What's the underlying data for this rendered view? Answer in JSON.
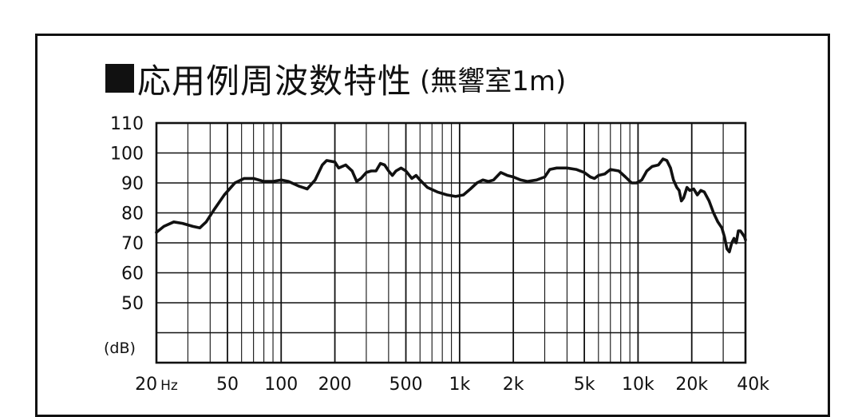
{
  "title": {
    "main": "応用例周波数特性",
    "sub": "(無響室1m)"
  },
  "chart_data": {
    "type": "line",
    "title": "応用例周波数特性 (無響室1m)",
    "xlabel": "",
    "ylabel": "(dB)",
    "xscale": "log",
    "xlim": [
      20,
      40000
    ],
    "ylim": [
      30,
      110
    ],
    "grid": true,
    "x_ticks": [
      {
        "value": 20,
        "label": "20",
        "unit": "Hz"
      },
      {
        "value": 50,
        "label": "50"
      },
      {
        "value": 100,
        "label": "100"
      },
      {
        "value": 200,
        "label": "200"
      },
      {
        "value": 500,
        "label": "500"
      },
      {
        "value": 1000,
        "label": "1k"
      },
      {
        "value": 2000,
        "label": "2k"
      },
      {
        "value": 5000,
        "label": "5k"
      },
      {
        "value": 10000,
        "label": "10k"
      },
      {
        "value": 20000,
        "label": "20k"
      },
      {
        "value": 40000,
        "label": "40k"
      }
    ],
    "y_ticks": [
      {
        "value": 110,
        "label": "110"
      },
      {
        "value": 100,
        "label": "100"
      },
      {
        "value": 90,
        "label": "90"
      },
      {
        "value": 80,
        "label": "80"
      },
      {
        "value": 70,
        "label": "70"
      },
      {
        "value": 60,
        "label": "60"
      },
      {
        "value": 50,
        "label": "50"
      }
    ],
    "series": [
      {
        "color": "#111111",
        "points": [
          [
            20,
            73.5
          ],
          [
            22,
            75.5
          ],
          [
            25,
            77
          ],
          [
            28,
            76.5
          ],
          [
            32,
            75.5
          ],
          [
            35,
            75
          ],
          [
            38,
            77
          ],
          [
            42,
            81
          ],
          [
            48,
            86
          ],
          [
            55,
            90
          ],
          [
            62,
            91.5
          ],
          [
            70,
            91.5
          ],
          [
            80,
            90.5
          ],
          [
            90,
            90.5
          ],
          [
            100,
            91
          ],
          [
            110,
            90.5
          ],
          [
            125,
            89
          ],
          [
            140,
            88
          ],
          [
            155,
            91
          ],
          [
            170,
            96
          ],
          [
            180,
            97.5
          ],
          [
            200,
            97
          ],
          [
            210,
            95
          ],
          [
            230,
            96
          ],
          [
            250,
            94
          ],
          [
            265,
            90.5
          ],
          [
            280,
            91.5
          ],
          [
            300,
            93.5
          ],
          [
            320,
            94
          ],
          [
            340,
            94
          ],
          [
            360,
            96.5
          ],
          [
            380,
            96
          ],
          [
            400,
            94
          ],
          [
            420,
            92.5
          ],
          [
            440,
            94
          ],
          [
            470,
            95
          ],
          [
            500,
            94
          ],
          [
            540,
            91.5
          ],
          [
            570,
            92.5
          ],
          [
            600,
            91
          ],
          [
            660,
            88.5
          ],
          [
            750,
            87
          ],
          [
            850,
            86
          ],
          [
            950,
            85.5
          ],
          [
            1050,
            86
          ],
          [
            1150,
            88
          ],
          [
            1250,
            90
          ],
          [
            1350,
            91
          ],
          [
            1450,
            90.5
          ],
          [
            1550,
            91
          ],
          [
            1700,
            93.5
          ],
          [
            1850,
            92.5
          ],
          [
            2000,
            92
          ],
          [
            2200,
            91
          ],
          [
            2400,
            90.5
          ],
          [
            2700,
            91
          ],
          [
            3000,
            92
          ],
          [
            3200,
            94.5
          ],
          [
            3500,
            95
          ],
          [
            4000,
            95
          ],
          [
            4500,
            94.5
          ],
          [
            5000,
            93.5
          ],
          [
            5400,
            92
          ],
          [
            5700,
            91.5
          ],
          [
            6000,
            92.5
          ],
          [
            6500,
            93
          ],
          [
            7000,
            94.5
          ],
          [
            7800,
            94
          ],
          [
            8500,
            92
          ],
          [
            9200,
            90
          ],
          [
            9800,
            90
          ],
          [
            10500,
            91
          ],
          [
            11200,
            94
          ],
          [
            12000,
            95.5
          ],
          [
            13000,
            96
          ],
          [
            13800,
            98
          ],
          [
            14500,
            97.5
          ],
          [
            15200,
            95
          ],
          [
            15800,
            91
          ],
          [
            16500,
            88.5
          ],
          [
            17000,
            87.5
          ],
          [
            17500,
            84
          ],
          [
            18000,
            85
          ],
          [
            18800,
            88.5
          ],
          [
            19500,
            87.5
          ],
          [
            20500,
            88
          ],
          [
            21500,
            86
          ],
          [
            22500,
            87.5
          ],
          [
            23500,
            87
          ],
          [
            25000,
            84
          ],
          [
            26500,
            80
          ],
          [
            28000,
            77
          ],
          [
            29500,
            75
          ],
          [
            30500,
            72
          ],
          [
            31500,
            68
          ],
          [
            32500,
            67
          ],
          [
            33500,
            70
          ],
          [
            34500,
            71.5
          ],
          [
            35500,
            70
          ],
          [
            36500,
            74
          ],
          [
            37500,
            74
          ],
          [
            38500,
            73
          ],
          [
            39500,
            72
          ],
          [
            40000,
            71
          ]
        ]
      }
    ]
  }
}
